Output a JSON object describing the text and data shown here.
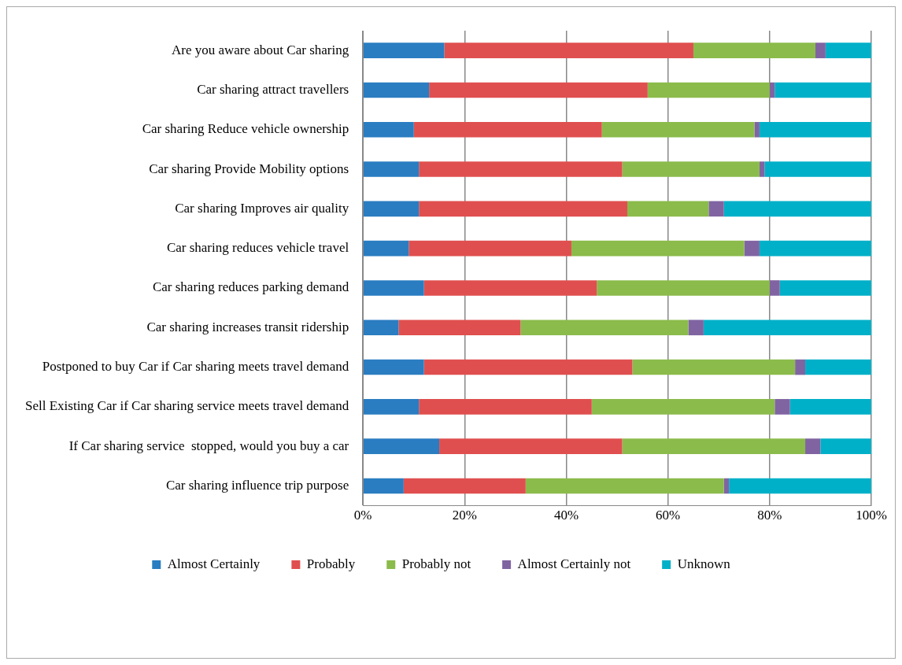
{
  "chart_data": {
    "type": "bar",
    "orientation": "horizontal",
    "stacked": true,
    "categories": [
      "Are you aware about Car sharing",
      "Car sharing attract travellers",
      "Car sharing Reduce vehicle ownership",
      "Car sharing Provide Mobility options",
      "Car sharing Improves air quality",
      "Car sharing reduces vehicle travel",
      "Car sharing reduces parking demand",
      "Car sharing increases transit ridership",
      "Postponed to buy Car if Car sharing meets travel demand",
      "Sell Existing Car if Car sharing service meets travel demand",
      "If Car sharing service  stopped, would you buy a car",
      "Car sharing influence trip purpose"
    ],
    "series": [
      {
        "name": "Almost Certainly",
        "color": "#2a7dc1",
        "values": [
          16,
          13,
          10,
          11,
          11,
          9,
          12,
          7,
          12,
          11,
          15,
          8
        ]
      },
      {
        "name": "Probably",
        "color": "#e04f4f",
        "values": [
          49,
          43,
          37,
          40,
          41,
          32,
          34,
          24,
          41,
          34,
          36,
          24
        ]
      },
      {
        "name": "Probably not",
        "color": "#8bbb4b",
        "values": [
          24,
          24,
          30,
          27,
          16,
          34,
          34,
          33,
          32,
          36,
          36,
          39
        ]
      },
      {
        "name": "Almost Certainly not",
        "color": "#8064a2",
        "values": [
          2,
          1,
          1,
          1,
          3,
          3,
          2,
          3,
          2,
          3,
          3,
          1
        ]
      },
      {
        "name": "Unknown",
        "color": "#00b0c8",
        "values": [
          9,
          19,
          22,
          21,
          29,
          22,
          18,
          33,
          13,
          16,
          10,
          28
        ]
      }
    ],
    "xlim": [
      0,
      100
    ],
    "xticks": [
      {
        "value": 0,
        "label": "0%"
      },
      {
        "value": 20,
        "label": "20%"
      },
      {
        "value": 40,
        "label": "40%"
      },
      {
        "value": 60,
        "label": "60%"
      },
      {
        "value": 80,
        "label": "80%"
      },
      {
        "value": 100,
        "label": "100%"
      }
    ],
    "grid": "x",
    "legend": "bottom"
  }
}
